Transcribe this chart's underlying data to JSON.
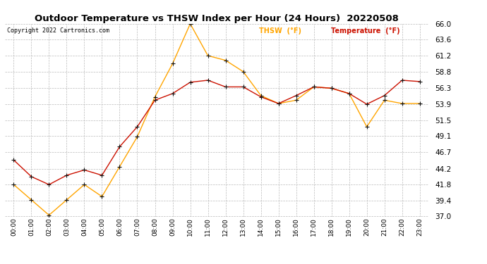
{
  "title": "Outdoor Temperature vs THSW Index per Hour (24 Hours)  20220508",
  "copyright": "Copyright 2022 Cartronics.com",
  "legend_thsw": "THSW  (°F)",
  "legend_temp": "Temperature  (°F)",
  "hours": [
    "00:00",
    "01:00",
    "02:00",
    "03:00",
    "04:00",
    "05:00",
    "06:00",
    "07:00",
    "08:00",
    "09:00",
    "10:00",
    "11:00",
    "12:00",
    "13:00",
    "14:00",
    "15:00",
    "16:00",
    "17:00",
    "18:00",
    "19:00",
    "20:00",
    "21:00",
    "22:00",
    "23:00"
  ],
  "temperature": [
    45.5,
    43.0,
    41.8,
    43.2,
    44.0,
    43.2,
    47.5,
    50.5,
    54.5,
    55.5,
    57.2,
    57.5,
    56.5,
    56.5,
    55.0,
    54.0,
    55.2,
    56.5,
    56.3,
    55.5,
    53.9,
    55.2,
    57.5,
    57.3
  ],
  "thsw": [
    41.8,
    39.5,
    37.2,
    39.5,
    41.8,
    40.0,
    44.5,
    49.0,
    55.0,
    60.0,
    66.0,
    61.2,
    60.5,
    58.8,
    55.2,
    54.0,
    54.5,
    56.5,
    56.3,
    55.5,
    50.5,
    54.5,
    54.0,
    54.0
  ],
  "ylim": [
    37.0,
    66.0
  ],
  "yticks": [
    37.0,
    39.4,
    41.8,
    44.2,
    46.7,
    49.1,
    51.5,
    53.9,
    56.3,
    58.8,
    61.2,
    63.6,
    66.0
  ],
  "thsw_color": "#FFA500",
  "temp_color": "#CC1100",
  "marker_color": "#111111",
  "bg_color": "#ffffff",
  "grid_color": "#bbbbbb",
  "title_color": "#000000",
  "copyright_color": "#000000",
  "legend_thsw_color": "#FFA500",
  "legend_temp_color": "#CC1100"
}
